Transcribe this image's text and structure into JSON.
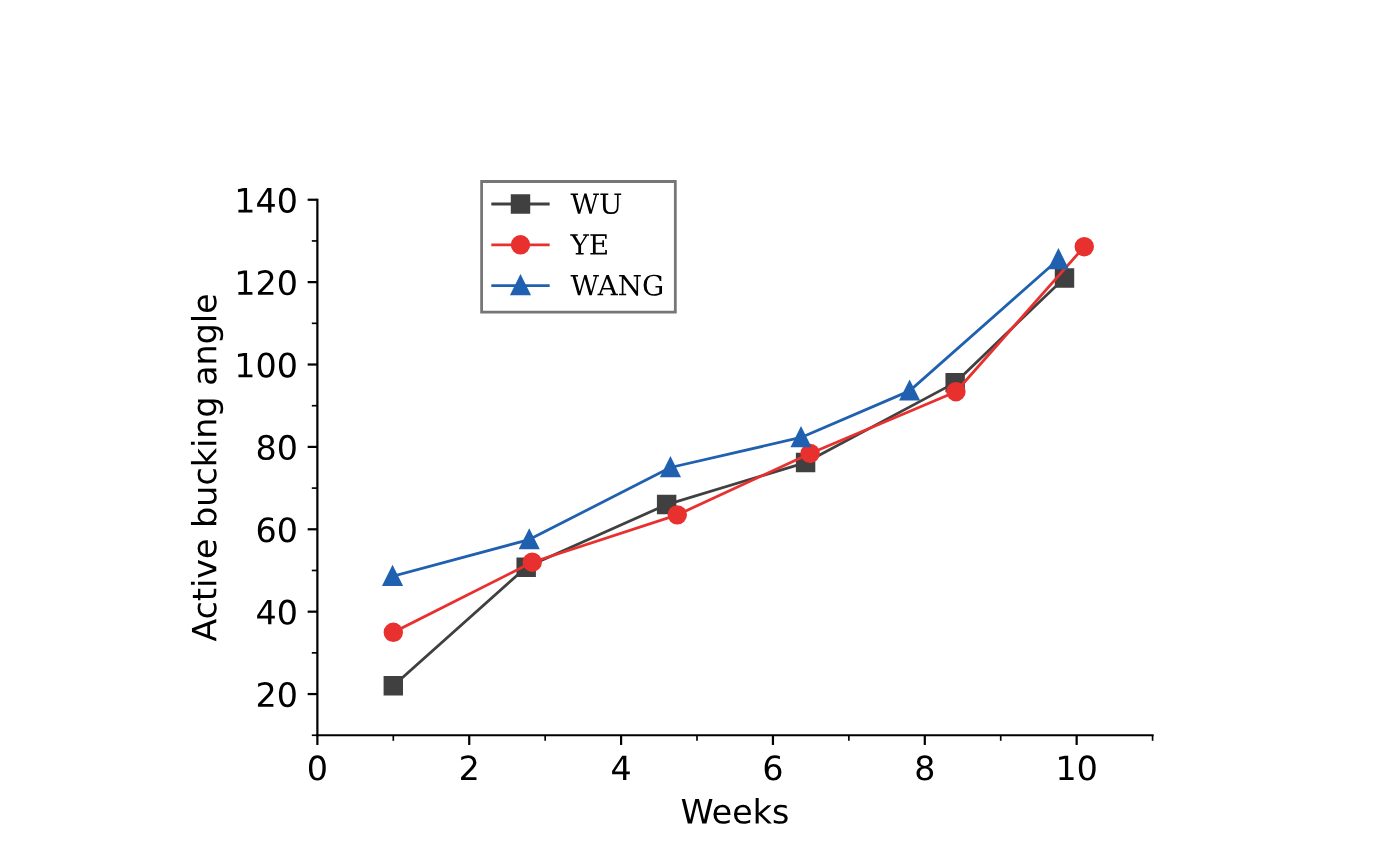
{
  "chart_data": {
    "type": "line",
    "xlabel": "Weeks",
    "ylabel": "Active bucking angle",
    "xlim": [
      0,
      11
    ],
    "xticks": [
      0,
      2,
      4,
      6,
      8,
      10
    ],
    "ylim": [
      10,
      140
    ],
    "yticks": [
      20,
      40,
      60,
      80,
      100,
      120,
      140
    ],
    "grid": false,
    "legend": "top left",
    "line_style": "solid",
    "series": [
      {
        "name": "WU",
        "color": "#404040",
        "marker": "square",
        "x": [
          1.0,
          2.75,
          4.6,
          6.43,
          8.4,
          9.84
        ],
        "values": [
          22,
          50.8,
          66,
          76.2,
          95.6,
          121
        ]
      },
      {
        "name": "YE",
        "color": "#e8312f",
        "marker": "circle",
        "x": [
          1.0,
          2.83,
          4.74,
          6.49,
          8.41,
          10.1
        ],
        "values": [
          35,
          52,
          63.5,
          78.4,
          93.4,
          128.6
        ]
      },
      {
        "name": "WANG",
        "color": "#2060b0",
        "marker": "triangle",
        "x": [
          0.99,
          2.79,
          4.65,
          6.37,
          7.8,
          9.76
        ],
        "values": [
          48.6,
          57.5,
          75,
          82.3,
          93.6,
          125.5
        ]
      }
    ]
  }
}
